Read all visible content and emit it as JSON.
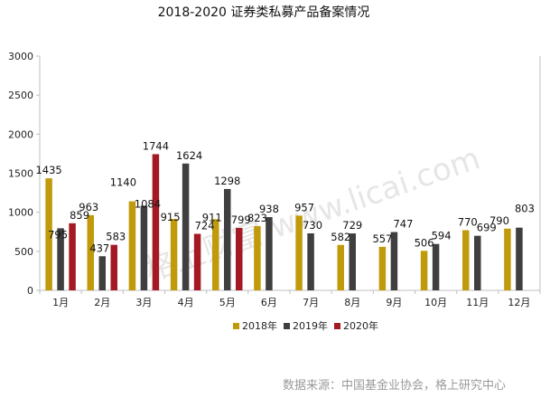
{
  "chart_data": {
    "type": "bar",
    "title": "2018-2020 证券类私募产品备案情况",
    "categories": [
      "1月",
      "2月",
      "3月",
      "4月",
      "5月",
      "6月",
      "7月",
      "8月",
      "9月",
      "10月",
      "11月",
      "12月"
    ],
    "series": [
      {
        "name": "2018年",
        "color": "#C19A0B",
        "values": [
          1435,
          963,
          1140,
          915,
          911,
          823,
          957,
          582,
          557,
          506,
          770,
          790
        ]
      },
      {
        "name": "2019年",
        "color": "#3F3F3F",
        "values": [
          795,
          437,
          1084,
          1624,
          1298,
          938,
          730,
          729,
          747,
          594,
          699,
          803
        ]
      },
      {
        "name": "2020年",
        "color": "#A31A24",
        "values": [
          859,
          583,
          1744,
          724,
          799,
          null,
          null,
          null,
          null,
          null,
          null,
          null
        ]
      }
    ],
    "ylim": [
      0,
      3000
    ],
    "yticks": [
      0,
      500,
      1000,
      1500,
      2000,
      2500,
      3000
    ],
    "xlabel": "",
    "ylabel": "",
    "grid": false,
    "legend_position": "bottom"
  },
  "source_note": "数据来源：中国基金业协会，格上研究中心",
  "watermark": "格上财富 www.licai.com"
}
